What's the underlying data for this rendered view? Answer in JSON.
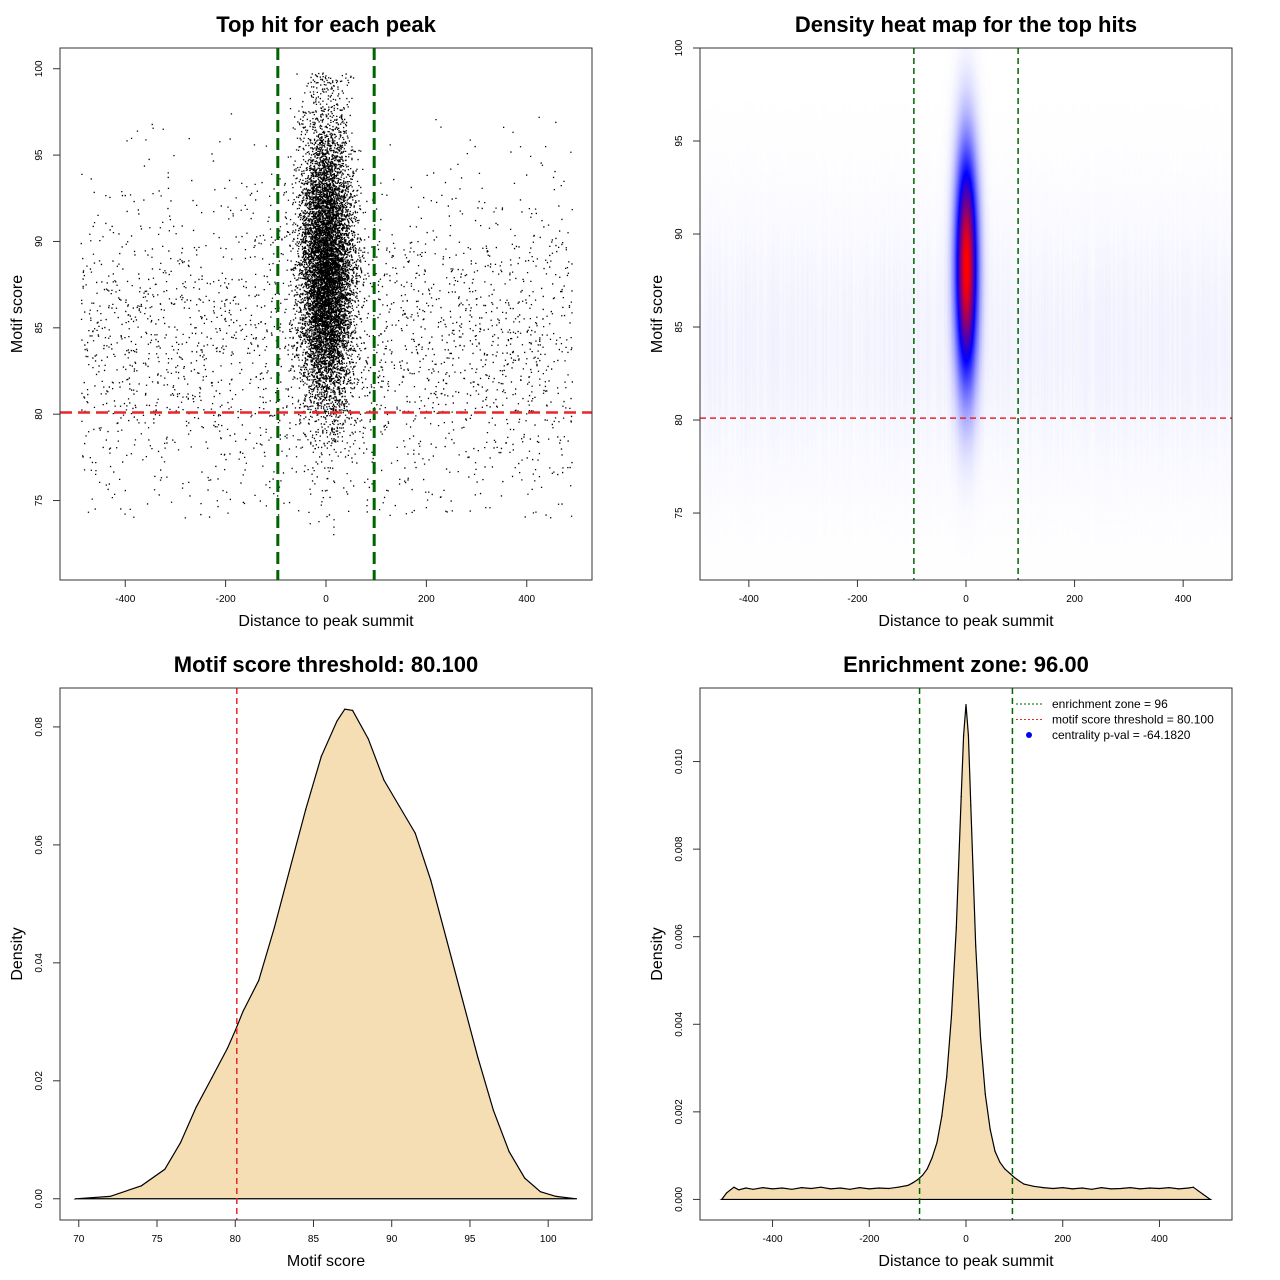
{
  "chart_data": [
    {
      "id": "scatter",
      "type": "scatter",
      "title": "Top hit for each peak",
      "xlabel": "Distance to peak summit",
      "ylabel": "Motif score",
      "xlim": [
        -530,
        530
      ],
      "ylim": [
        70.4,
        101.2
      ],
      "xticks": [
        -400,
        -200,
        0,
        200,
        400
      ],
      "yticks": [
        75,
        80,
        85,
        90,
        95,
        100
      ],
      "vlines": [
        -96,
        96
      ],
      "hline": 80.1,
      "background_points": {
        "count": 2600,
        "x_range": [
          -490,
          490
        ],
        "y_mean": 84,
        "y_sd": 4.8
      },
      "central_points": {
        "count": 9000,
        "x_mean": 0,
        "x_sd": 26,
        "y_mean": 88.5,
        "y_sd": 4.2
      },
      "colors": {
        "points": "#000000",
        "enrichment_line": "#006400",
        "threshold_line": "#e8262b"
      }
    },
    {
      "id": "heatmap",
      "type": "heatmap",
      "title": "Density heat map for the top hits",
      "xlabel": "Distance to peak summit",
      "ylabel": "Motif score",
      "xlim": [
        -490,
        490
      ],
      "ylim": [
        71.4,
        100
      ],
      "xticks": [
        -400,
        -200,
        0,
        200,
        400
      ],
      "yticks": [
        75,
        80,
        85,
        90,
        95,
        100
      ],
      "vlines": [
        -96,
        96
      ],
      "hline": 80.1,
      "peak": {
        "x": 0,
        "y": 88.3,
        "x_sd": 14,
        "y_sd": 4.2
      },
      "colors": {
        "low": "#ffffff",
        "mid": "#0000ff",
        "high": "#ff0000",
        "enrichment_line": "#006400",
        "threshold_line": "#e8262b"
      }
    },
    {
      "id": "score_density",
      "type": "area",
      "title": "Motif score threshold: 80.100",
      "xlabel": "Motif score",
      "ylabel": "Density",
      "xlim": [
        68.8,
        102.8
      ],
      "ylim": [
        -0.0036,
        0.0866
      ],
      "xticks": [
        70,
        75,
        80,
        85,
        90,
        95,
        100
      ],
      "yticks": [
        0.0,
        0.02,
        0.04,
        0.06,
        0.08
      ],
      "ytick_labels": [
        "0.00",
        "0.02",
        "0.04",
        "0.06",
        "0.08"
      ],
      "vline": 80.1,
      "x": [
        69.8,
        72,
        74,
        75.5,
        76.5,
        77.5,
        78.5,
        79.5,
        80,
        80.5,
        81.5,
        82.5,
        83.5,
        84.5,
        85.5,
        86.5,
        87,
        87.5,
        88.5,
        89.5,
        90.5,
        91.5,
        92.5,
        93.5,
        94.5,
        95.5,
        96.5,
        97.5,
        98.5,
        99.5,
        100.5,
        101.8
      ],
      "values": [
        0.0,
        0.0004,
        0.0022,
        0.005,
        0.0095,
        0.0155,
        0.0205,
        0.0255,
        0.0285,
        0.0318,
        0.037,
        0.046,
        0.056,
        0.066,
        0.075,
        0.081,
        0.083,
        0.0828,
        0.078,
        0.071,
        0.0665,
        0.062,
        0.054,
        0.044,
        0.034,
        0.024,
        0.015,
        0.008,
        0.0035,
        0.0012,
        0.0004,
        0.0
      ],
      "colors": {
        "fill": "#f5deb3",
        "line": "#000000",
        "threshold_line": "#e8262b"
      }
    },
    {
      "id": "distance_density",
      "type": "area",
      "title": "Enrichment zone: 96.00",
      "xlabel": "Distance to peak summit",
      "ylabel": "Density",
      "xlim": [
        -550,
        550
      ],
      "ylim": [
        -0.00047,
        0.01168
      ],
      "xticks": [
        -400,
        -200,
        0,
        200,
        400
      ],
      "yticks": [
        0.0,
        0.002,
        0.004,
        0.006,
        0.008,
        0.01
      ],
      "ytick_labels": [
        "0.000",
        "0.002",
        "0.004",
        "0.006",
        "0.008",
        "0.010"
      ],
      "vlines": [
        -96,
        96
      ],
      "x": [
        -505,
        -495,
        -480,
        -470,
        -455,
        -440,
        -420,
        -400,
        -380,
        -360,
        -340,
        -320,
        -300,
        -280,
        -260,
        -240,
        -220,
        -200,
        -180,
        -160,
        -140,
        -120,
        -110,
        -100,
        -90,
        -80,
        -70,
        -60,
        -50,
        -40,
        -30,
        -20,
        -10,
        -5,
        0,
        5,
        10,
        20,
        30,
        40,
        50,
        60,
        70,
        80,
        90,
        100,
        110,
        120,
        140,
        160,
        180,
        200,
        220,
        240,
        260,
        280,
        300,
        320,
        340,
        360,
        380,
        400,
        420,
        440,
        460,
        470,
        480,
        490,
        505
      ],
      "values": [
        0.0,
        0.00015,
        0.00028,
        0.00022,
        0.00026,
        0.00023,
        0.00027,
        0.00024,
        0.00026,
        0.00023,
        0.00027,
        0.00025,
        0.00028,
        0.00024,
        0.00026,
        0.00023,
        0.00027,
        0.00024,
        0.00026,
        0.00025,
        0.00028,
        0.00032,
        0.00038,
        0.00045,
        0.00055,
        0.0007,
        0.00095,
        0.0013,
        0.0019,
        0.0028,
        0.0042,
        0.0062,
        0.0092,
        0.0106,
        0.0113,
        0.0106,
        0.009,
        0.0058,
        0.0037,
        0.0024,
        0.0016,
        0.0011,
        0.00085,
        0.0007,
        0.0006,
        0.0005,
        0.00042,
        0.00035,
        0.0003,
        0.00027,
        0.00025,
        0.00027,
        0.00024,
        0.00026,
        0.00023,
        0.00027,
        0.00024,
        0.00025,
        0.00027,
        0.00024,
        0.00026,
        0.00025,
        0.00027,
        0.00024,
        0.00026,
        0.00028,
        0.0002,
        0.00012,
        0.0
      ],
      "legend": {
        "position": "top-right",
        "entries": [
          {
            "label": "enrichment zone = 96",
            "style": "dotted-line",
            "color": "#006400"
          },
          {
            "label": "motif score threshold = 80.100",
            "style": "dotted-line",
            "color": "#e8262b"
          },
          {
            "label": "centrality p-val = -64.1820",
            "style": "point",
            "color": "#0000ff"
          }
        ]
      },
      "colors": {
        "fill": "#f5deb3",
        "line": "#000000",
        "enrichment_line": "#006400"
      }
    }
  ]
}
